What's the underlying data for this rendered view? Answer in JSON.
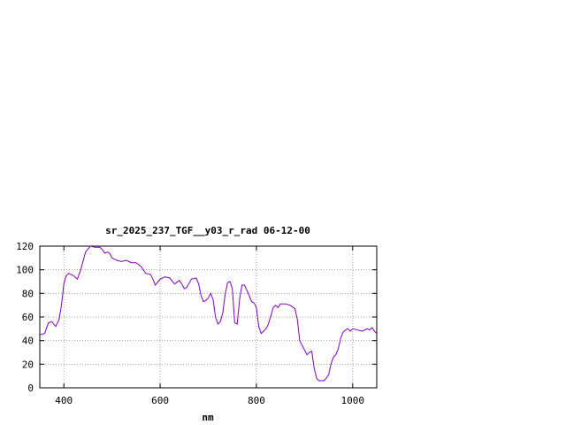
{
  "chart_data": {
    "type": "line",
    "title": "sr_2025_237_TGF__y03_r_rad 06-12-00",
    "xlabel": "nm",
    "ylabel": "",
    "xlim": [
      350,
      1050
    ],
    "ylim": [
      0,
      120
    ],
    "xticks": [
      400,
      600,
      800,
      1000
    ],
    "yticks": [
      0,
      20,
      40,
      60,
      80,
      100,
      120
    ],
    "xtick_labels": [
      "400",
      "600",
      "800",
      "1000"
    ],
    "ytick_labels": [
      "0",
      "20",
      "40",
      "60",
      "80",
      "100",
      "120"
    ],
    "grid": true,
    "legend": "none",
    "series": [
      {
        "color": "#8000c0",
        "x": [
          350,
          360,
          368,
          375,
          383,
          390,
          395,
          400,
          405,
          410,
          420,
          428,
          435,
          445,
          455,
          465,
          475,
          480,
          485,
          490,
          495,
          500,
          510,
          520,
          530,
          540,
          550,
          560,
          570,
          580,
          585,
          590,
          600,
          610,
          620,
          630,
          640,
          645,
          650,
          655,
          665,
          675,
          680,
          685,
          690,
          695,
          700,
          705,
          710,
          715,
          720,
          725,
          730,
          735,
          740,
          745,
          750,
          755,
          760,
          765,
          770,
          775,
          780,
          785,
          790,
          795,
          800,
          805,
          810,
          815,
          820,
          825,
          830,
          835,
          840,
          845,
          850,
          855,
          860,
          870,
          880,
          885,
          890,
          895,
          900,
          905,
          910,
          915,
          920,
          925,
          930,
          935,
          940,
          945,
          950,
          955,
          960,
          965,
          970,
          975,
          980,
          985,
          990,
          995,
          1000,
          1010,
          1020,
          1030,
          1035,
          1040,
          1045,
          1050
        ],
        "y": [
          45,
          46,
          55,
          56,
          52,
          58,
          70,
          88,
          95,
          97,
          95,
          92,
          100,
          115,
          120,
          119,
          119,
          117,
          114,
          115,
          114,
          110,
          108,
          107,
          108,
          106,
          106,
          103,
          97,
          96,
          92,
          87,
          92,
          94,
          93,
          88,
          91,
          88,
          84,
          85,
          92,
          93,
          88,
          78,
          73,
          74,
          76,
          80,
          75,
          60,
          54,
          56,
          63,
          79,
          89,
          90,
          84,
          55,
          54,
          75,
          87,
          87,
          83,
          78,
          73,
          72,
          68,
          52,
          46,
          48,
          50,
          54,
          61,
          68,
          70,
          68,
          71,
          71,
          71,
          70,
          67,
          58,
          40,
          36,
          32,
          28,
          30,
          31,
          17,
          8,
          6,
          6,
          6,
          8,
          11,
          20,
          26,
          28,
          33,
          42,
          47,
          49,
          50,
          48,
          50,
          49,
          48,
          50,
          49,
          51,
          48,
          46
        ]
      }
    ]
  }
}
